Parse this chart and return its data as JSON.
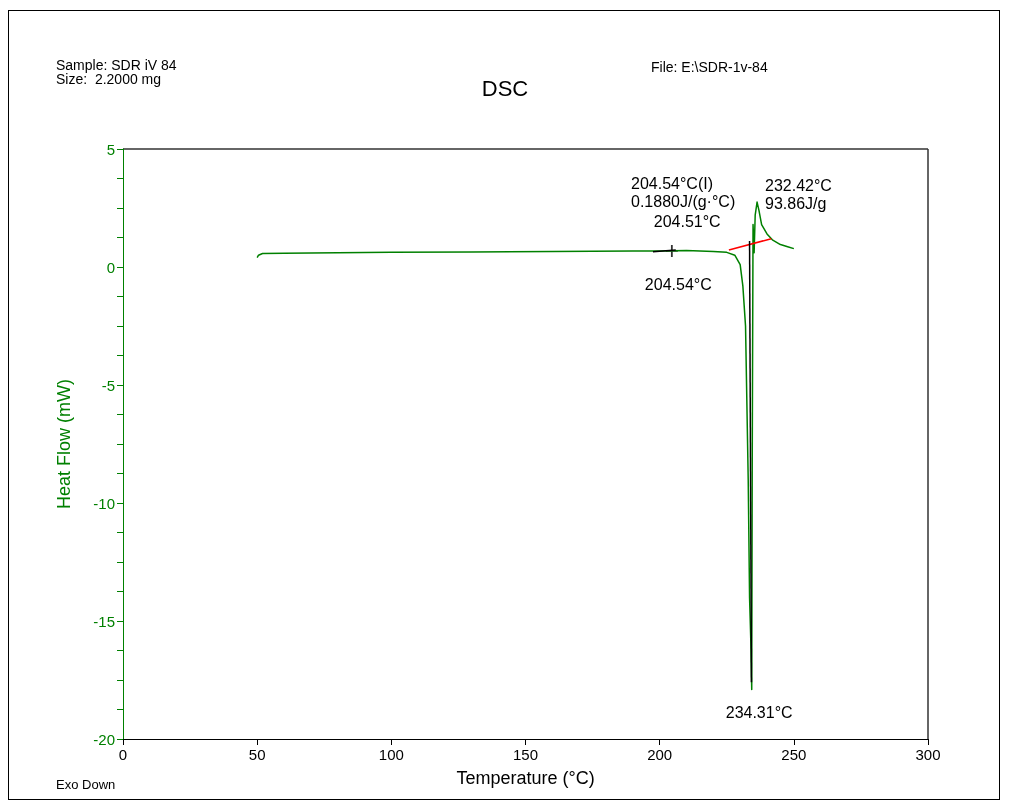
{
  "chart_data": {
    "type": "line",
    "title": "DSC",
    "xlabel": "Temperature (°C)",
    "ylabel": "Heat Flow (mW)",
    "xlim": [
      0,
      300
    ],
    "xticks": [
      0,
      50,
      100,
      150,
      200,
      250,
      300
    ],
    "ylim": [
      -20,
      5
    ],
    "yticks": [
      -20,
      {
        "value": -18.75,
        "label": null
      },
      {
        "value": -17.5,
        "label": null
      },
      {
        "value": -16.25,
        "label": null
      },
      -15,
      {
        "value": -13.75,
        "label": null
      },
      {
        "value": -12.5,
        "label": null
      },
      {
        "value": -11.25,
        "label": null
      },
      -10,
      {
        "value": -8.75,
        "label": null
      },
      {
        "value": -7.5,
        "label": null
      },
      {
        "value": -6.25,
        "label": null
      },
      -5,
      {
        "value": -3.75,
        "label": null
      },
      {
        "value": -2.5,
        "label": null
      },
      {
        "value": -1.25,
        "label": null
      },
      0,
      {
        "value": 1.25,
        "label": null
      },
      {
        "value": 2.5,
        "label": null
      },
      {
        "value": 3.75,
        "label": null
      },
      5
    ],
    "grid": false,
    "series": [
      {
        "color": "#008000",
        "marker": "none",
        "x": [
          50,
          50.5,
          52,
          60,
          80,
          100,
          130,
          160,
          190,
          200,
          210,
          220,
          225,
          228,
          230,
          231,
          232,
          233,
          233.5,
          234,
          234.31,
          234.5,
          234.8,
          235.2,
          235.6,
          236.3,
          237,
          238,
          240,
          242,
          245,
          248,
          250
        ],
        "values": [
          0.4,
          0.5,
          0.57,
          0.58,
          0.6,
          0.62,
          0.64,
          0.66,
          0.68,
          0.68,
          0.7,
          0.66,
          0.62,
          0.5,
          0.1,
          -0.8,
          -2.5,
          -9,
          -14,
          -16,
          -17.9,
          -8,
          1.8,
          0.6,
          2.2,
          2.75,
          2.4,
          1.8,
          1.4,
          1.15,
          0.95,
          0.85,
          0.78
        ]
      },
      {
        "color": "#ff0000",
        "marker": "none",
        "x": [
          225.8,
          241.6
        ],
        "values": [
          0.72,
          1.2
        ]
      },
      {
        "color": "#000000",
        "marker": "none",
        "x": [
          233.5,
          234.2
        ],
        "values": [
          1.1,
          -17.6
        ]
      },
      {
        "color": "#000000",
        "marker": "none",
        "x": [
          197.5,
          206
        ],
        "values": [
          0.65,
          0.72
        ]
      },
      {
        "type": "scatter",
        "color": "#000000",
        "marker": "cross",
        "x": [
          204.54
        ],
        "values": [
          0.68
        ]
      }
    ],
    "annotations": [
      "Sample: SDR iV 84",
      "Size:  2.2000 mg",
      "File: E:\\SDR-1v-84",
      "Exo Down",
      "204.54°C(I)\n0.1880J/(g·°C)",
      {
        "text": "204.51°C",
        "x": 204.51,
        "y": 0.68
      },
      {
        "text": "204.54°C",
        "x": 204.54,
        "y": 0.68
      },
      "232.42°C\n93.86J/g",
      {
        "text": "234.31°C",
        "x": 234.31,
        "y": -17.9
      }
    ]
  }
}
